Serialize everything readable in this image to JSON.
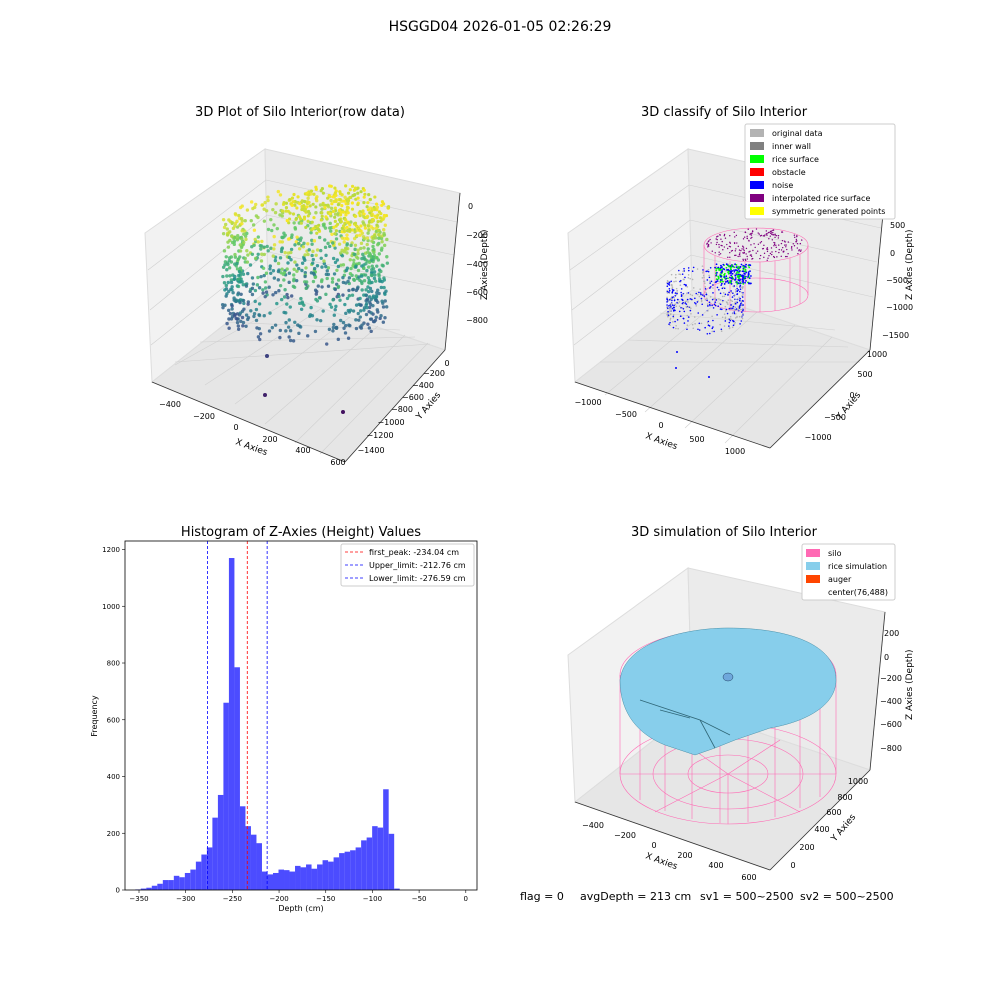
{
  "suptitle": "HSGGD04 2026-01-05 02:26:29",
  "footer": {
    "flag": "flag = 0",
    "avg_depth": "avgDepth = 213 cm",
    "sv1": "sv1 = 500~2500",
    "sv2": "sv2 = 500~2500"
  },
  "colors": {
    "histogram_bar": "#4c4cff",
    "first_peak_line": "#ff0000",
    "limit_line": "#0000ff",
    "silo": "#ff69b4",
    "rice_simulation": "#87ceeb",
    "auger": "#ff4500",
    "rice_surface": "#00ff00",
    "noise": "#0000ff",
    "obstacle": "#ff0000",
    "original_data": "#b3b3b3",
    "inner_wall": "#808080",
    "interpolated_rice_surface": "#800080",
    "symmetric_generated_points": "#ffff00"
  },
  "chart_data": [
    {
      "type": "scatter",
      "title": "3D Plot of Silo Interior(row data)",
      "xlabel": "X Axies",
      "ylabel": "Y Axies",
      "zlabel": "Z Axies (Depth)",
      "x_ticks": [
        "−400",
        "−200",
        "0",
        "200",
        "400",
        "600"
      ],
      "y_ticks": [
        "−1400",
        "−1200",
        "−1000",
        "−800",
        "−600",
        "−400",
        "−200",
        "0"
      ],
      "z_ticks": [
        "−800",
        "−600",
        "−400",
        "−200",
        "0"
      ],
      "colormap": "viridis"
    },
    {
      "type": "scatter",
      "title": "3D classify of Silo Interior",
      "xlabel": "X Axies",
      "ylabel": "Y Axies",
      "zlabel": "Z Axies (Depth)",
      "x_ticks": [
        "−1000",
        "−500",
        "0",
        "500",
        "1000"
      ],
      "y_ticks": [
        "−1000",
        "−500",
        "0",
        "500",
        "1000"
      ],
      "z_ticks": [
        "−1500",
        "−1000",
        "−500",
        "0",
        "500"
      ],
      "legend": [
        {
          "label": "original data",
          "color": "#b3b3b3"
        },
        {
          "label": "inner wall",
          "color": "#808080"
        },
        {
          "label": "rice surface",
          "color": "#00ff00"
        },
        {
          "label": "obstacle",
          "color": "#ff0000"
        },
        {
          "label": "noise",
          "color": "#0000ff"
        },
        {
          "label": "interpolated rice surface",
          "color": "#800080"
        },
        {
          "label": "symmetric generated points",
          "color": "#ffff00"
        }
      ],
      "legend_position": "top-right"
    },
    {
      "type": "bar",
      "title": "Histogram of Z-Axies (Height) Values",
      "xlabel": "Depth (cm)",
      "ylabel": "Frequency",
      "xlim": [
        -365,
        12
      ],
      "ylim": [
        0,
        1230
      ],
      "x_ticks": [
        -350,
        -300,
        -250,
        -200,
        -150,
        -100,
        -50,
        0
      ],
      "x_tick_labels": [
        "−350",
        "−300",
        "−250",
        "−200",
        "−150",
        "−100",
        "−50",
        "0"
      ],
      "y_ticks": [
        0,
        200,
        400,
        600,
        800,
        1000,
        1200
      ],
      "bin_start": -354,
      "bin_width": 5.9,
      "values": [
        2,
        5,
        8,
        15,
        22,
        35,
        35,
        50,
        45,
        60,
        72,
        100,
        125,
        150,
        255,
        335,
        660,
        1170,
        785,
        295,
        225,
        195,
        165,
        65,
        55,
        60,
        72,
        70,
        65,
        85,
        80,
        90,
        75,
        90,
        105,
        100,
        115,
        130,
        135,
        140,
        150,
        175,
        185,
        225,
        220,
        355,
        198,
        5
      ],
      "vlines": [
        {
          "name": "first_peak",
          "label": "first_peak: -234.04 cm",
          "x": -234.04,
          "color": "#ff0000"
        },
        {
          "name": "upper-limit",
          "label": "Upper_limit: -212.76 cm",
          "x": -212.76,
          "color": "#0000ff"
        },
        {
          "name": "lower-limit",
          "label": "Lower_limit: -276.59 cm",
          "x": -276.59,
          "color": "#0000ff"
        }
      ],
      "legend_position": "top-right"
    },
    {
      "type": "surface",
      "title": "3D simulation of Silo Interior",
      "xlabel": "X Axies",
      "ylabel": "Y Axies",
      "zlabel": "Z Axies (Depth)",
      "x_ticks": [
        "−400",
        "−200",
        "0",
        "200",
        "400",
        "600"
      ],
      "y_ticks": [
        "0",
        "200",
        "400",
        "600",
        "800",
        "1000"
      ],
      "z_ticks": [
        "−800",
        "−600",
        "−400",
        "−200",
        "0",
        "200"
      ],
      "legend": [
        {
          "label": "silo",
          "color": "#ff69b4"
        },
        {
          "label": "rice simulation",
          "color": "#87ceeb"
        },
        {
          "label": "auger",
          "color": "#ff4500"
        },
        {
          "label": "center(76,488)",
          "color": ""
        }
      ],
      "legend_position": "top-right"
    }
  ]
}
